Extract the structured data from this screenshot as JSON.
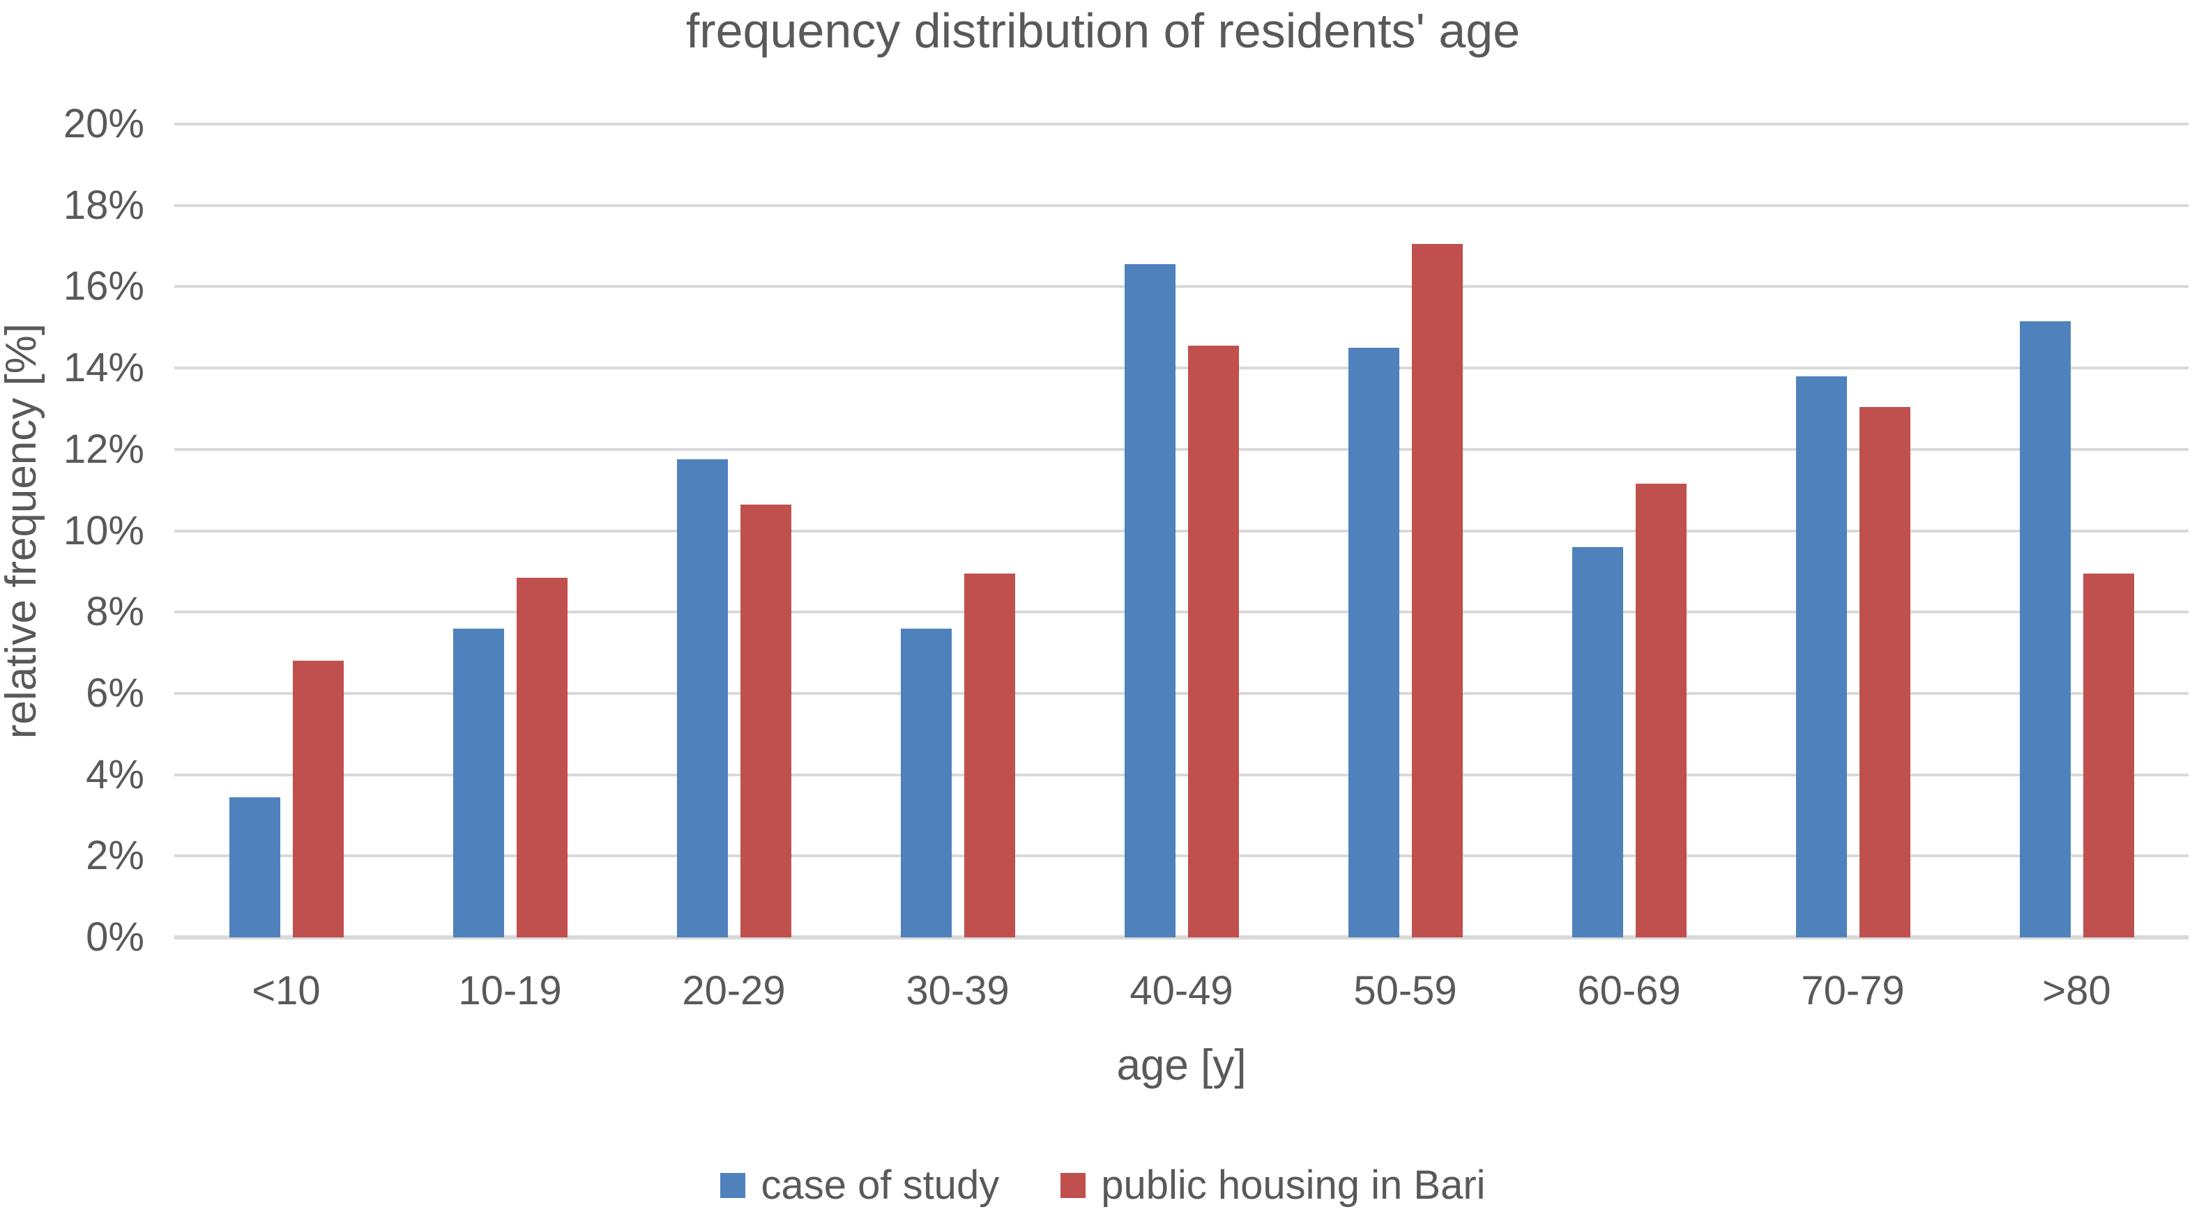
{
  "title": "frequency distribution of residents' age",
  "y_axis": {
    "title": "relative frequency [%]",
    "ticks": [
      "20%",
      "18%",
      "16%",
      "14%",
      "12%",
      "10%",
      "8%",
      "6%",
      "4%",
      "2%",
      "0%"
    ]
  },
  "x_axis": {
    "title": "age [y]"
  },
  "legend": [
    {
      "label": "case of study",
      "color": "#4F81BD"
    },
    {
      "label": "public housing in Bari",
      "color": "#C0504D"
    }
  ],
  "chart_data": {
    "type": "bar",
    "title": "frequency distribution of residents' age",
    "categories": [
      "<10",
      "10-19",
      "20-29",
      "30-39",
      "40-49",
      "50-59",
      "60-69",
      "70-79",
      ">80"
    ],
    "series": [
      {
        "name": "case of study",
        "color": "#4F81BD",
        "values": [
          3.45,
          7.6,
          11.75,
          7.6,
          16.55,
          14.5,
          9.6,
          13.8,
          15.15
        ]
      },
      {
        "name": "public housing in Bari",
        "color": "#C0504D",
        "values": [
          6.8,
          8.85,
          10.65,
          8.95,
          14.55,
          17.05,
          11.15,
          13.05,
          8.95
        ]
      }
    ],
    "xlabel": "age [y]",
    "ylabel": "relative frequency [%]",
    "ylim": [
      0,
      20
    ],
    "y_tick_step": 2,
    "grid": true,
    "gridline_color": "#D9D9D9",
    "text_color": "#595959",
    "legend_position": "bottom"
  }
}
